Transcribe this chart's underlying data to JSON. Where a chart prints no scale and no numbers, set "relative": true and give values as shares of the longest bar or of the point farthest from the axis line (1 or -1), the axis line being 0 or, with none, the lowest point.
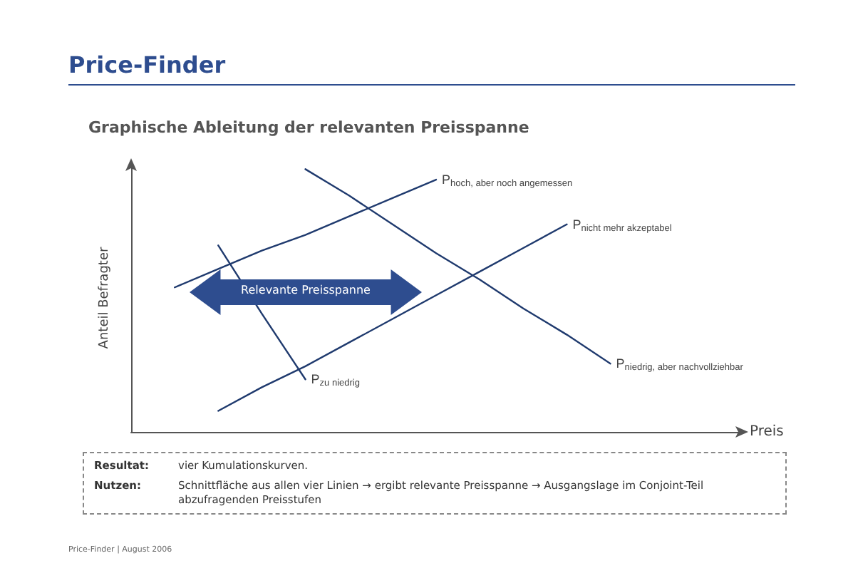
{
  "chart_data": {
    "type": "line",
    "title": "Price-Finder",
    "subtitle": "Graphische Ableitung der relevanten Preisspanne",
    "xlabel": "Preis",
    "ylabel": "Anteil Befragter",
    "relative": true,
    "tick_labels": false,
    "marker": "none",
    "line_style": "solid",
    "categories": [
      null,
      null,
      null,
      null,
      null,
      null,
      null,
      null,
      null,
      null,
      null,
      null,
      null,
      null,
      null
    ],
    "series": [
      {
        "name": "P$_{hoch, aber noch angemessen}$",
        "color": "#1f3a6e",
        "values": [
          null,
          0.55,
          0.62,
          0.69,
          0.75,
          0.82,
          0.89,
          0.96,
          null,
          null,
          null,
          null,
          null,
          null,
          null
        ]
      },
      {
        "name": "P$_{niedrig, aber nachvollziehbar}$",
        "color": "#1f3a6e",
        "values": [
          null,
          null,
          null,
          null,
          1.0,
          0.9,
          0.79,
          0.68,
          0.58,
          0.47,
          0.37,
          0.26,
          null,
          null,
          null
        ]
      },
      {
        "name": "P$_{nicht mehr akzeptabel}$",
        "color": "#1f3a6e",
        "values": [
          null,
          null,
          0.08,
          0.17,
          0.25,
          0.34,
          0.43,
          0.52,
          0.61,
          0.7,
          0.79,
          null,
          null,
          null,
          null
        ]
      },
      {
        "name": "P$_{zu niedrig}$",
        "color": "#1f3a6e",
        "values": [
          null,
          null,
          0.71,
          0.45,
          0.2,
          null,
          null,
          null,
          null,
          null,
          null,
          null,
          null,
          null,
          null
        ]
      }
    ],
    "annotations": [
      "Relevante Preisspanne",
      "Resultat:",
      "vier Kumulationskurven.",
      "Nutzen:",
      "Schnittfläche aus allen vier Linien → ergibt relevante Preisspanne → Ausgangslage im Conjoint-Teil abzufragenden Preisstufen",
      "Price-Finder | August 2006"
    ]
  }
}
